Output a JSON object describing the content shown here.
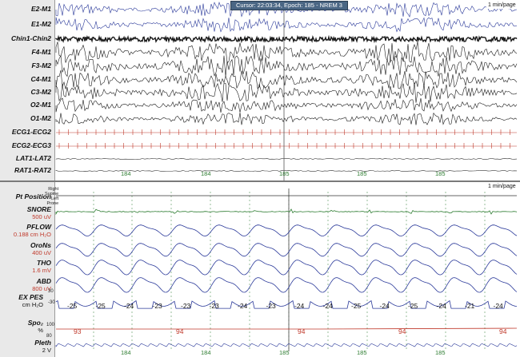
{
  "cursor": {
    "text": "Cursor: 22:03:34, Epoch: 185 - NREM 3"
  },
  "page_scale": "1 min/page",
  "top_channels": [
    {
      "key": "e2m1",
      "label": "E2-M1"
    },
    {
      "key": "e1m2",
      "label": "E1-M2"
    },
    {
      "key": "chin",
      "label": "Chin1-Chin2"
    },
    {
      "key": "f4m1",
      "label": "F4-M1"
    },
    {
      "key": "f3m2",
      "label": "F3-M2"
    },
    {
      "key": "c4m1",
      "label": "C4-M1"
    },
    {
      "key": "c3m2",
      "label": "C3-M2"
    },
    {
      "key": "o2m1",
      "label": "O2-M1"
    },
    {
      "key": "o1m2",
      "label": "O1-M2"
    },
    {
      "key": "ecg1",
      "label": "ECG1-ECG2"
    },
    {
      "key": "ecg2",
      "label": "ECG2-ECG3"
    },
    {
      "key": "lat",
      "label": "LAT1-LAT2"
    },
    {
      "key": "rat",
      "label": "RAT1-RAT2"
    }
  ],
  "epoch_labels": [
    "184",
    "184",
    "185",
    "185",
    "185"
  ],
  "bottom_channels": {
    "pt_position": {
      "label": "Pt Position",
      "positions": [
        "Right",
        "Supine",
        "Left",
        "Prone"
      ]
    },
    "snore": {
      "label": "SNORE",
      "unit": "500 uV"
    },
    "pflow": {
      "label": "PFLOW",
      "unit": "0.188 cm H₂O"
    },
    "orons": {
      "label": "OroNs",
      "unit": "400 uV"
    },
    "tho": {
      "label": "THO",
      "unit": "1.6 mV"
    },
    "abd": {
      "label": "ABD",
      "unit": "800 uV"
    },
    "expes": {
      "label": "EX PES",
      "unit": "cm H₂O",
      "scale_top": "30",
      "scale_bottom": "-30"
    },
    "spo2": {
      "label": "Spo₂",
      "unit": "%",
      "scale_top": "100",
      "scale_bottom": "80"
    },
    "pleth": {
      "label": "Pleth",
      "unit": "2 V"
    }
  },
  "pes_values": [
    "-25",
    "-25",
    "-24",
    "-23",
    "-23",
    "-23",
    "-24",
    "-23",
    "-24",
    "-24",
    "-25",
    "-24",
    "-25",
    "-24",
    "-21",
    "-24"
  ],
  "spo2_values": [
    "93",
    "94",
    "94",
    "94",
    "94"
  ],
  "colors": {
    "eeg": "#1a1a1a",
    "eog": "#2b3a9a",
    "ecg": "#c0392b",
    "resp": "#2b3a9a",
    "snore": "#2e7d32",
    "spo2": "#c0392b",
    "grid": "#2e7d32"
  }
}
